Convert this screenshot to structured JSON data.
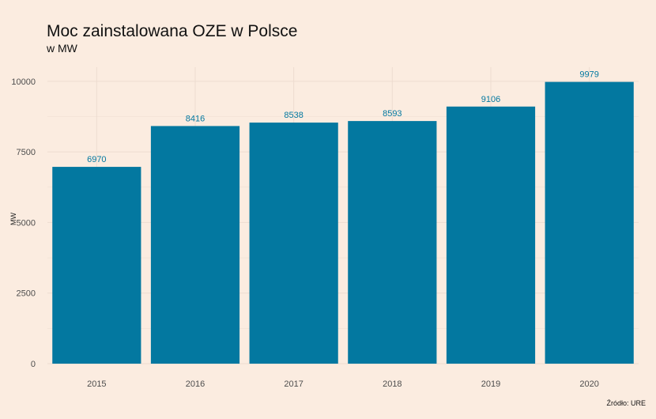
{
  "colors": {
    "background": "#fbece0",
    "bar": "#0378a0",
    "label": "#0378a0",
    "grid": "#eddcd0"
  },
  "chart_data": {
    "type": "bar",
    "title": "Moc zainstalowana OZE w Polsce",
    "subtitle": "w MW",
    "xlabel": "",
    "ylabel": "MW",
    "caption": "Źródło:  URE",
    "categories": [
      "2015",
      "2016",
      "2017",
      "2018",
      "2019",
      "2020"
    ],
    "values": [
      6970,
      8416,
      8538,
      8593,
      9106,
      9979
    ],
    "data_labels": [
      "6970",
      "8416",
      "8538",
      "8593",
      "9106",
      "9979"
    ],
    "y_ticks": [
      0,
      2500,
      5000,
      7500,
      10000
    ],
    "y_tick_labels": [
      "0",
      "2500",
      "5000",
      "7500",
      "10000"
    ],
    "ylim": [
      0,
      10500
    ],
    "grid": true,
    "legend": "none"
  }
}
